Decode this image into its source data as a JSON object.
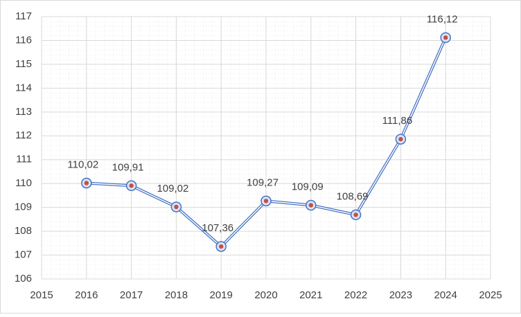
{
  "chart_data": {
    "type": "line",
    "x": [
      2016,
      2017,
      2018,
      2019,
      2020,
      2021,
      2022,
      2023,
      2024
    ],
    "series": [
      {
        "color": "#4472c4",
        "marker_color": "#c0504d",
        "values": [
          110.02,
          109.91,
          109.02,
          107.36,
          109.27,
          109.09,
          108.69,
          111.86,
          116.12
        ],
        "value_labels": [
          "110,02",
          "109,91",
          "109,02",
          "107,36",
          "109,27",
          "109,09",
          "108,69",
          "111,86",
          "116,12"
        ]
      }
    ],
    "xlim": [
      2015,
      2025
    ],
    "xticks": [
      2015,
      2016,
      2017,
      2018,
      2019,
      2020,
      2021,
      2022,
      2023,
      2024,
      2025
    ],
    "ylim": [
      106,
      117
    ],
    "yticks": [
      106,
      107,
      108,
      109,
      110,
      111,
      112,
      113,
      114,
      115,
      116,
      117
    ],
    "grid": true,
    "minor_grid": true
  }
}
